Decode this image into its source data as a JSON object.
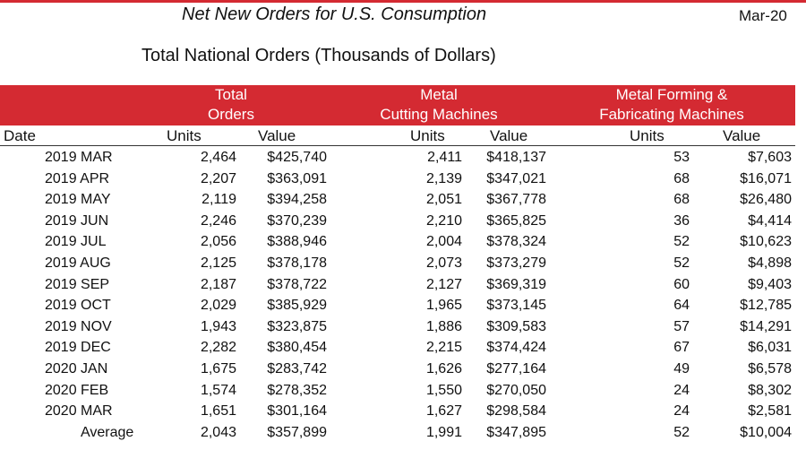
{
  "report": {
    "title": "Net New Orders for U.S. Consumption",
    "period": "Mar-20",
    "subtitle": "Total National Orders (Thousands of Dollars)"
  },
  "colors": {
    "header_band": "#d42a32",
    "header_text": "#ffffff"
  },
  "headers": {
    "total_line1": "Total",
    "total_line2": "Orders",
    "cutting_line1": "Metal",
    "cutting_line2": "Cutting Machines",
    "forming_line1": "Metal Forming &",
    "forming_line2": "Fabricating Machines",
    "date": "Date",
    "units": "Units",
    "value": "Value"
  },
  "rows": [
    {
      "date": "2019 MAR",
      "total_units": "2,464",
      "total_value": "$425,740",
      "cut_units": "2,411",
      "cut_value": "$418,137",
      "form_units": "53",
      "form_value": "$7,603"
    },
    {
      "date": "2019 APR",
      "total_units": "2,207",
      "total_value": "$363,091",
      "cut_units": "2,139",
      "cut_value": "$347,021",
      "form_units": "68",
      "form_value": "$16,071"
    },
    {
      "date": "2019 MAY",
      "total_units": "2,119",
      "total_value": "$394,258",
      "cut_units": "2,051",
      "cut_value": "$367,778",
      "form_units": "68",
      "form_value": "$26,480"
    },
    {
      "date": "2019 JUN",
      "total_units": "2,246",
      "total_value": "$370,239",
      "cut_units": "2,210",
      "cut_value": "$365,825",
      "form_units": "36",
      "form_value": "$4,414"
    },
    {
      "date": "2019 JUL",
      "total_units": "2,056",
      "total_value": "$388,946",
      "cut_units": "2,004",
      "cut_value": "$378,324",
      "form_units": "52",
      "form_value": "$10,623"
    },
    {
      "date": "2019 AUG",
      "total_units": "2,125",
      "total_value": "$378,178",
      "cut_units": "2,073",
      "cut_value": "$373,279",
      "form_units": "52",
      "form_value": "$4,898"
    },
    {
      "date": "2019 SEP",
      "total_units": "2,187",
      "total_value": "$378,722",
      "cut_units": "2,127",
      "cut_value": "$369,319",
      "form_units": "60",
      "form_value": "$9,403"
    },
    {
      "date": "2019 OCT",
      "total_units": "2,029",
      "total_value": "$385,929",
      "cut_units": "1,965",
      "cut_value": "$373,145",
      "form_units": "64",
      "form_value": "$12,785"
    },
    {
      "date": "2019 NOV",
      "total_units": "1,943",
      "total_value": "$323,875",
      "cut_units": "1,886",
      "cut_value": "$309,583",
      "form_units": "57",
      "form_value": "$14,291"
    },
    {
      "date": "2019 DEC",
      "total_units": "2,282",
      "total_value": "$380,454",
      "cut_units": "2,215",
      "cut_value": "$374,424",
      "form_units": "67",
      "form_value": "$6,031"
    },
    {
      "date": "2020 JAN",
      "total_units": "1,675",
      "total_value": "$283,742",
      "cut_units": "1,626",
      "cut_value": "$277,164",
      "form_units": "49",
      "form_value": "$6,578"
    },
    {
      "date": "2020 FEB",
      "total_units": "1,574",
      "total_value": "$278,352",
      "cut_units": "1,550",
      "cut_value": "$270,050",
      "form_units": "24",
      "form_value": "$8,302"
    },
    {
      "date": "2020 MAR",
      "total_units": "1,651",
      "total_value": "$301,164",
      "cut_units": "1,627",
      "cut_value": "$298,584",
      "form_units": "24",
      "form_value": "$2,581"
    }
  ],
  "average": {
    "label": "Average",
    "total_units": "2,043",
    "total_value": "$357,899",
    "cut_units": "1,991",
    "cut_value": "$347,895",
    "form_units": "52",
    "form_value": "$10,004"
  }
}
